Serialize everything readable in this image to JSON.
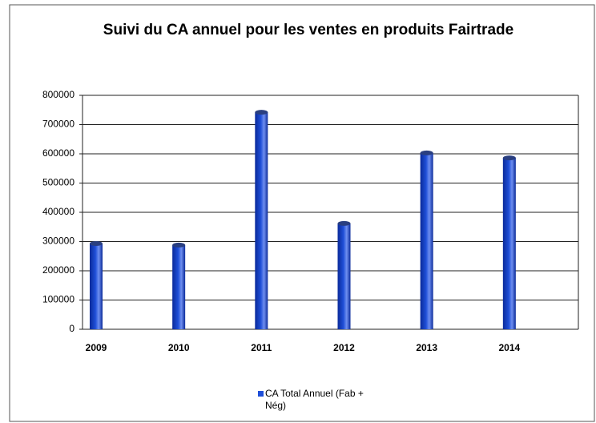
{
  "chart_data": {
    "type": "bar",
    "title": "Suivi du CA annuel pour les ventes en produits Fairtrade",
    "categories": [
      "2009",
      "2010",
      "2011",
      "2012",
      "2013",
      "2014"
    ],
    "series": [
      {
        "name": "CA Total Annuel (Fab + Nég)",
        "color": "#1f4fd8",
        "values": [
          293000,
          288000,
          742000,
          362000,
          603000,
          586000
        ]
      }
    ],
    "ylim": [
      0,
      800000
    ],
    "yticks": [
      0,
      100000,
      200000,
      300000,
      400000,
      500000,
      600000,
      700000,
      800000
    ],
    "grid": true,
    "legend": "bottom"
  }
}
